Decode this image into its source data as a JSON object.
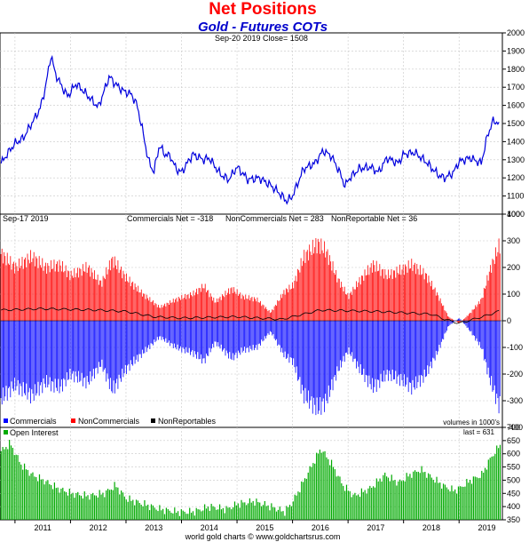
{
  "header": {
    "title": "Net Positions",
    "subtitle": "Gold - Futures COTs"
  },
  "footer": {
    "credit": "world gold charts © www.goldchartsrus.com"
  },
  "colors": {
    "title": "#ff0000",
    "subtitle": "#0000cc",
    "price_line": "#0000dd",
    "commercials": "#0000ff",
    "noncommercials": "#ff0000",
    "nonreportables": "#000000",
    "open_interest": "#00aa00",
    "grid": "#c8c8c8"
  },
  "chart_data": [
    {
      "type": "line",
      "name": "price",
      "annotation": "Sep-20  2019   Close= 1508",
      "ylim": [
        1000,
        2000
      ],
      "yticks": [
        1000,
        1100,
        1200,
        1300,
        1400,
        1500,
        1600,
        1700,
        1800,
        1900,
        2000
      ],
      "x": [
        2010.75,
        2010.9,
        2011.0,
        2011.15,
        2011.3,
        2011.45,
        2011.55,
        2011.65,
        2011.72,
        2011.85,
        2011.95,
        2012.1,
        2012.2,
        2012.35,
        2012.5,
        2012.7,
        2012.8,
        2012.95,
        2013.1,
        2013.2,
        2013.3,
        2013.4,
        2013.5,
        2013.6,
        2013.7,
        2013.8,
        2013.9,
        2014.0,
        2014.2,
        2014.4,
        2014.5,
        2014.7,
        2014.85,
        2015.0,
        2015.2,
        2015.4,
        2015.6,
        2015.75,
        2015.9,
        2016.0,
        2016.2,
        2016.4,
        2016.55,
        2016.7,
        2016.85,
        2016.95,
        2017.0,
        2017.2,
        2017.4,
        2017.55,
        2017.7,
        2017.9,
        2018.0,
        2018.2,
        2018.4,
        2018.55,
        2018.65,
        2018.75,
        2018.9,
        2019.0,
        2019.2,
        2019.4,
        2019.5,
        2019.6,
        2019.72
      ],
      "y": [
        1280,
        1350,
        1390,
        1420,
        1500,
        1580,
        1700,
        1880,
        1780,
        1700,
        1650,
        1720,
        1690,
        1640,
        1590,
        1760,
        1720,
        1680,
        1660,
        1600,
        1460,
        1300,
        1230,
        1380,
        1330,
        1320,
        1250,
        1230,
        1330,
        1300,
        1310,
        1220,
        1190,
        1260,
        1190,
        1200,
        1160,
        1120,
        1070,
        1100,
        1250,
        1280,
        1350,
        1320,
        1230,
        1150,
        1190,
        1250,
        1260,
        1230,
        1310,
        1280,
        1330,
        1340,
        1290,
        1240,
        1210,
        1200,
        1230,
        1290,
        1310,
        1280,
        1420,
        1510,
        1508
      ]
    },
    {
      "type": "bar",
      "name": "net positions",
      "annotations": [
        "Sep-17  2019",
        "Commercials Net = -318",
        "NonCommercials Net = 283",
        "NonReportable Net = 36"
      ],
      "ylim": [
        -400,
        400
      ],
      "yticks": [
        -400,
        -300,
        -200,
        -100,
        0,
        100,
        200,
        300,
        400
      ],
      "unit_note": "volumes in 1000's",
      "series": [
        {
          "name": "Commercials",
          "x": [
            2010.75,
            2011.0,
            2011.3,
            2011.55,
            2011.8,
            2012.0,
            2012.3,
            2012.55,
            2012.75,
            2013.0,
            2013.3,
            2013.6,
            2013.9,
            2014.2,
            2014.4,
            2014.6,
            2014.9,
            2015.1,
            2015.35,
            2015.6,
            2015.85,
            2016.0,
            2016.2,
            2016.45,
            2016.6,
            2016.8,
            2017.0,
            2017.2,
            2017.45,
            2017.7,
            2017.95,
            2018.15,
            2018.4,
            2018.6,
            2018.8,
            2019.0,
            2019.2,
            2019.4,
            2019.55,
            2019.72
          ],
          "values": [
            -290,
            -240,
            -280,
            -230,
            -250,
            -200,
            -230,
            -160,
            -260,
            -180,
            -120,
            -60,
            -100,
            -120,
            -150,
            -80,
            -140,
            -110,
            -100,
            -40,
            -130,
            -150,
            -280,
            -330,
            -300,
            -190,
            -110,
            -180,
            -250,
            -200,
            -220,
            -250,
            -200,
            -120,
            -20,
            10,
            -40,
            -100,
            -220,
            -318
          ]
        },
        {
          "name": "NonCommercials",
          "x": [
            2010.75,
            2011.0,
            2011.3,
            2011.55,
            2011.8,
            2012.0,
            2012.3,
            2012.55,
            2012.75,
            2013.0,
            2013.3,
            2013.6,
            2013.9,
            2014.2,
            2014.4,
            2014.6,
            2014.9,
            2015.1,
            2015.35,
            2015.6,
            2015.85,
            2016.0,
            2016.2,
            2016.45,
            2016.6,
            2016.8,
            2017.0,
            2017.2,
            2017.45,
            2017.7,
            2017.95,
            2018.15,
            2018.4,
            2018.6,
            2018.8,
            2019.0,
            2019.2,
            2019.4,
            2019.55,
            2019.72
          ],
          "values": [
            250,
            200,
            240,
            200,
            210,
            170,
            200,
            140,
            230,
            160,
            100,
            50,
            80,
            100,
            130,
            70,
            120,
            90,
            80,
            30,
            110,
            130,
            240,
            290,
            260,
            160,
            90,
            150,
            210,
            170,
            190,
            210,
            170,
            100,
            15,
            -10,
            30,
            80,
            190,
            283
          ]
        },
        {
          "name": "NonReportables",
          "x": [
            2010.75,
            2011.5,
            2012.5,
            2013.0,
            2013.5,
            2014.0,
            2015.0,
            2015.8,
            2016.5,
            2017.5,
            2018.5,
            2018.75,
            2019.0,
            2019.5,
            2019.72
          ],
          "values": [
            40,
            45,
            40,
            35,
            15,
            10,
            15,
            5,
            40,
            35,
            25,
            5,
            -10,
            20,
            36
          ]
        }
      ],
      "legend": [
        "Commercials",
        "NonCommercials",
        "NonReportables"
      ],
      "legend_position": "bottom-left"
    },
    {
      "type": "bar",
      "name": "open interest",
      "annotation": "last = 631",
      "legend": [
        "Open Interest"
      ],
      "ylim": [
        350,
        700
      ],
      "yticks": [
        350,
        400,
        450,
        500,
        550,
        600,
        650,
        700
      ],
      "x": [
        2010.75,
        2010.9,
        2011.1,
        2011.3,
        2011.5,
        2011.75,
        2012.0,
        2012.3,
        2012.6,
        2012.8,
        2013.0,
        2013.3,
        2013.6,
        2013.9,
        2014.2,
        2014.5,
        2014.8,
        2015.0,
        2015.3,
        2015.6,
        2015.85,
        2016.0,
        2016.3,
        2016.5,
        2016.7,
        2016.9,
        2017.1,
        2017.4,
        2017.65,
        2017.9,
        2018.1,
        2018.3,
        2018.5,
        2018.7,
        2018.9,
        2019.0,
        2019.2,
        2019.4,
        2019.55,
        2019.72
      ],
      "values": [
        610,
        640,
        560,
        520,
        500,
        470,
        450,
        440,
        450,
        480,
        430,
        410,
        390,
        380,
        380,
        400,
        390,
        410,
        420,
        400,
        380,
        420,
        540,
        620,
        560,
        480,
        440,
        470,
        520,
        490,
        520,
        540,
        510,
        480,
        460,
        470,
        500,
        520,
        580,
        631
      ]
    }
  ],
  "x_axis": {
    "xlim": [
      2010.73,
      2019.78
    ],
    "ticks": [
      2011,
      2012,
      2013,
      2014,
      2015,
      2016,
      2017,
      2018,
      2019
    ],
    "labels": [
      "2011",
      "2012",
      "2013",
      "2014",
      "2015",
      "2016",
      "2017",
      "2018",
      "2019"
    ],
    "label_offset": 0.5
  }
}
